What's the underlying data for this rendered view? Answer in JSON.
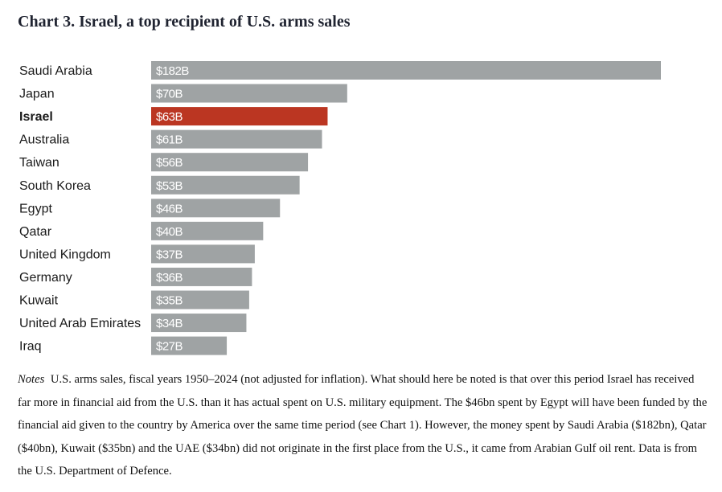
{
  "chart_data": {
    "type": "bar",
    "orientation": "horizontal",
    "title": "Chart 3.  Israel, a top recipient of U.S. arms sales",
    "xlabel": "",
    "ylabel": "",
    "units": "billion USD",
    "categories": [
      "Saudi Arabia",
      "Japan",
      "Israel",
      "Australia",
      "Taiwan",
      "South Korea",
      "Egypt",
      "Qatar",
      "United Kingdom",
      "Germany",
      "Kuwait",
      "United Arab Emirates",
      "Iraq"
    ],
    "values": [
      182,
      70,
      63,
      61,
      56,
      53,
      46,
      40,
      37,
      36,
      35,
      34,
      27
    ],
    "data_labels": [
      "$182B",
      "$70B",
      "$63B",
      "$61B",
      "$56B",
      "$53B",
      "$46B",
      "$40B",
      "$37B",
      "$36B",
      "$35B",
      "$34B",
      "$27B"
    ],
    "highlight": "Israel",
    "colors": {
      "default": "#9fa3a4",
      "highlight": "#bb3622"
    },
    "xlim": [
      0,
      182
    ],
    "grid": false,
    "legend": "none"
  },
  "notes": {
    "lead": "Notes",
    "text": "U.S. arms sales, fiscal years 1950–2024 (not adjusted for inflation). What should here be noted is that over this period Israel has received far more in financial aid from the U.S. than it has actual spent on U.S. military equipment. The $46bn spent by Egypt will have been funded by the financial aid given to the country by America over the same time period (see Chart 1). However, the money spent by Saudi Arabia ($182bn), Qatar ($40bn), Kuwait ($35bn) and the UAE ($34bn) did not originate in the first place from the U.S., it came from Arabian Gulf oil rent. Data is from the U.S. Department of Defence."
  }
}
